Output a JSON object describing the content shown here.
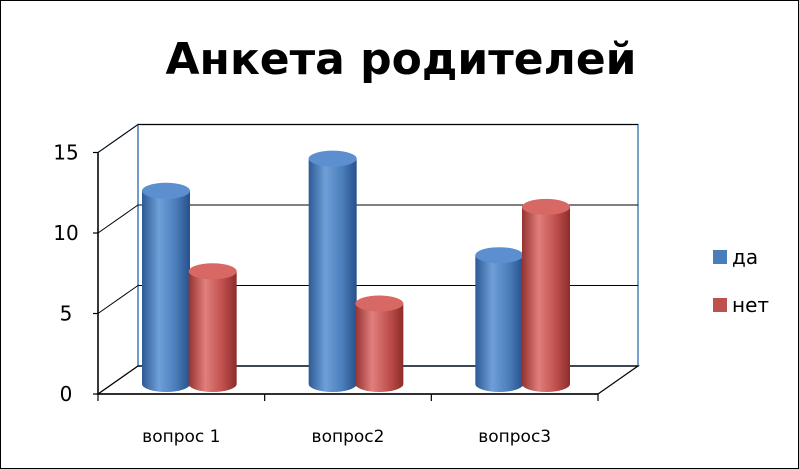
{
  "chart_data": {
    "type": "bar",
    "title": "Анкета родителей",
    "categories": [
      "вопрос 1",
      "вопрос2",
      "вопрос3"
    ],
    "series": [
      {
        "name": "да",
        "values": [
          12,
          14,
          8
        ],
        "color": "#4a7ebb"
      },
      {
        "name": "нет",
        "values": [
          7,
          5,
          11
        ],
        "color": "#c0504d"
      }
    ],
    "yticks": [
      "0",
      "5",
      "10",
      "15"
    ],
    "ylim": [
      0,
      15
    ],
    "grid": true,
    "legend": "right",
    "style": "3d-cylinder"
  }
}
